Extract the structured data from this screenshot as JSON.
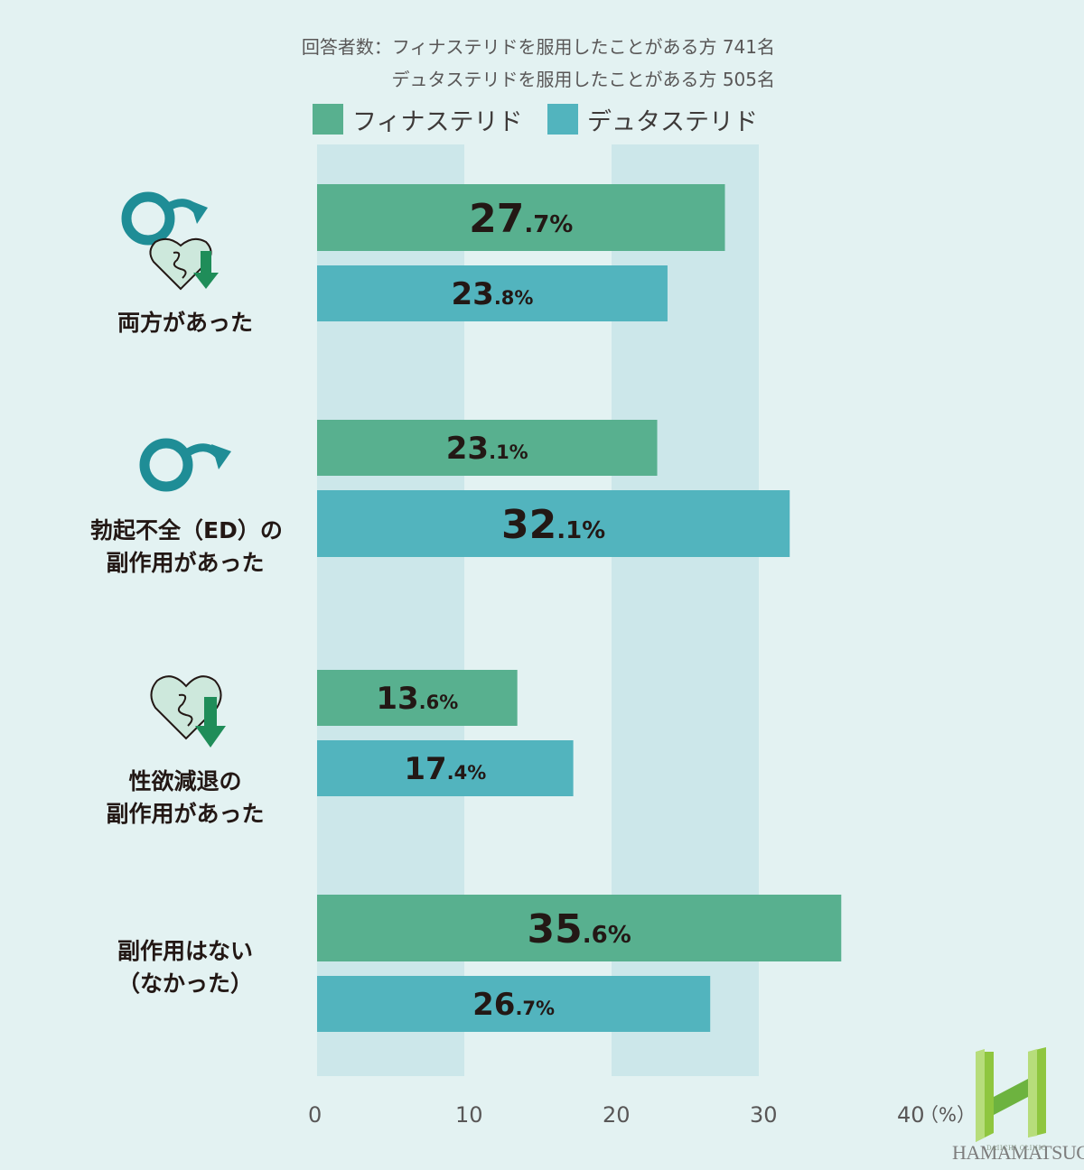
{
  "header": {
    "respondents_line1": "回答者数：フィナステリドを服用したことがある方 741名",
    "respondents_line2": "デュタステリドを服用したことがある方 505名"
  },
  "colors": {
    "background": "#e3f2f2",
    "band": "#cce7ea",
    "finasteride": "#58b08f",
    "dutasteride": "#52b4be",
    "icon_teal": "#1f8d96",
    "icon_green": "#1f8d59"
  },
  "chart_data": {
    "type": "bar",
    "orientation": "horizontal",
    "categories": [
      [
        "両方があった"
      ],
      [
        "勃起不全（ED）の",
        "副作用があった"
      ],
      [
        "性欲減退の",
        "副作用があった"
      ],
      [
        "副作用はない",
        "（なかった）"
      ]
    ],
    "series": [
      {
        "name": "フィナステリド",
        "values": [
          27.7,
          23.1,
          13.6,
          35.6
        ]
      },
      {
        "name": "デュタステリド",
        "values": [
          23.8,
          32.1,
          17.4,
          26.7
        ]
      }
    ],
    "value_format": "%",
    "xlim": [
      0,
      40
    ],
    "xticks": [
      "0",
      "10",
      "20",
      "30",
      "40"
    ],
    "xunit": "（%）",
    "legend_position": "top"
  },
  "categories_display": {
    "both": "両方があった",
    "ed_line1": "勃起不全（ED）の",
    "ed_line2": "副作用があった",
    "libido_line1": "性欲減退の",
    "libido_line2": "副作用があった",
    "none_line1": "副作用はない",
    "none_line2": "（なかった）"
  },
  "icons": {
    "both": "male-symbol-and-heart-down-icon",
    "ed": "male-symbol-icon",
    "libido": "heart-down-icon"
  },
  "logo": {
    "mark": "H",
    "line1": "DAIICHI CLINIC",
    "line2": "HAMAMATSUCHO"
  }
}
